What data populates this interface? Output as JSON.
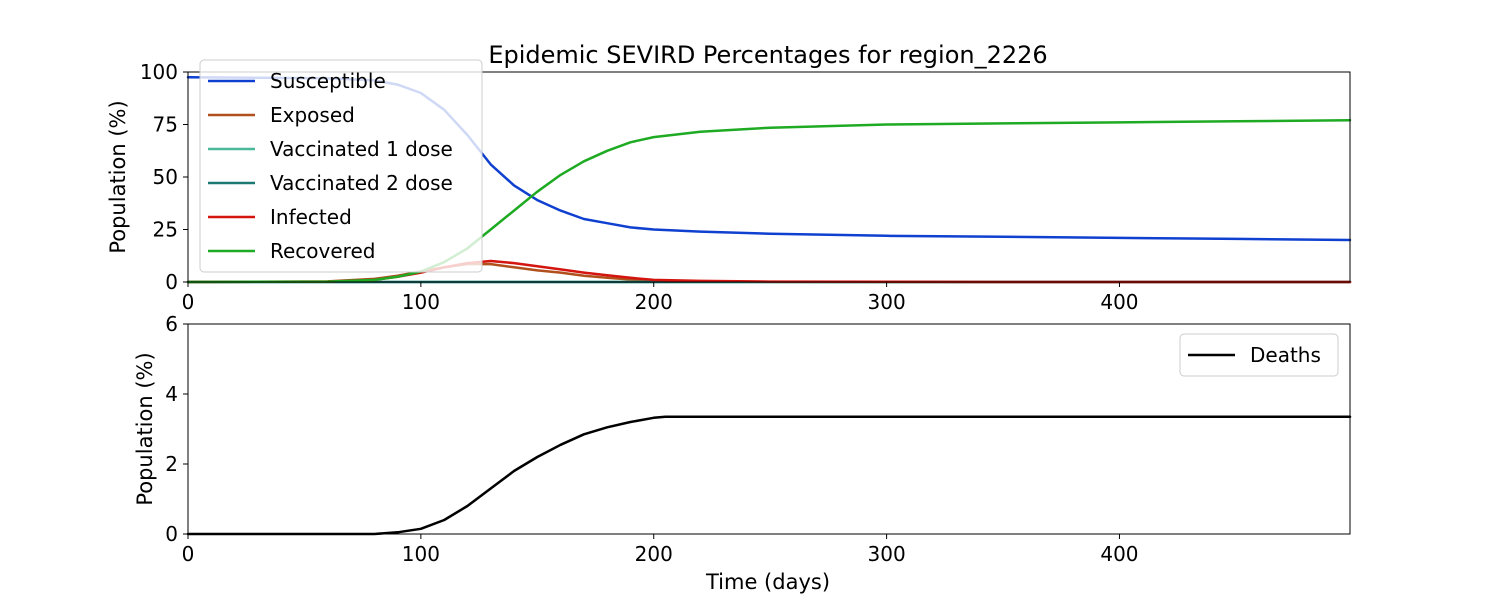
{
  "chart_data": [
    {
      "type": "line",
      "title": "Epidemic SEVIRD Percentages for region_2226",
      "xlabel": "",
      "ylabel": "Population (%)",
      "xlim": [
        0,
        499
      ],
      "ylim": [
        0,
        100
      ],
      "xticks": [
        0,
        100,
        200,
        300,
        400
      ],
      "yticks": [
        0,
        25,
        50,
        75,
        100
      ],
      "grid": false,
      "legend_position": "upper-left",
      "x": [
        0,
        60,
        80,
        90,
        100,
        110,
        120,
        130,
        140,
        150,
        160,
        170,
        180,
        190,
        200,
        220,
        250,
        300,
        350,
        400,
        450,
        499
      ],
      "series": [
        {
          "name": "Susceptible",
          "color": "#0f40d0",
          "values": [
            97.5,
            97,
            96,
            94,
            90,
            82,
            70,
            56,
            46,
            39,
            34,
            30,
            28,
            26,
            25,
            24,
            23,
            22,
            21.5,
            21,
            20.5,
            20
          ]
        },
        {
          "name": "Exposed",
          "color": "#b0501c",
          "values": [
            0,
            0.3,
            1.5,
            3,
            5,
            7,
            8.5,
            8.5,
            7,
            5.5,
            4.5,
            3,
            2,
            1.2,
            0.6,
            0.3,
            0.1,
            0,
            0,
            0,
            0,
            0
          ]
        },
        {
          "name": "Vaccinated 1 dose",
          "color": "#4cb89a",
          "values": [
            0,
            0,
            0,
            0,
            0,
            0,
            0,
            0,
            0,
            0,
            0,
            0,
            0,
            0,
            0,
            0,
            0,
            0,
            0,
            0,
            0,
            0
          ]
        },
        {
          "name": "Vaccinated 2 dose",
          "color": "#1d7a72",
          "values": [
            0,
            0,
            0,
            0,
            0,
            0,
            0,
            0,
            0,
            0,
            0,
            0,
            0,
            0,
            0,
            0,
            0,
            0,
            0,
            0,
            0,
            0
          ]
        },
        {
          "name": "Infected",
          "color": "#d4140e",
          "values": [
            0,
            0.2,
            1,
            2.5,
            4.5,
            7,
            9,
            10,
            9,
            7.5,
            6,
            4.5,
            3.2,
            2,
            1,
            0.5,
            0.2,
            0.1,
            0,
            0,
            0,
            0
          ]
        },
        {
          "name": "Recovered",
          "color": "#1eaa22",
          "values": [
            0,
            0.2,
            1,
            2.5,
            5,
            9.5,
            16,
            25,
            34,
            43,
            51,
            57.5,
            62.5,
            66.5,
            69,
            71.5,
            73.5,
            75,
            75.5,
            76,
            76.5,
            77
          ]
        }
      ]
    },
    {
      "type": "line",
      "title": "",
      "xlabel": "Time (days)",
      "ylabel": "Population (%)",
      "xlim": [
        0,
        499
      ],
      "ylim": [
        0,
        6
      ],
      "xticks": [
        0,
        100,
        200,
        300,
        400
      ],
      "yticks": [
        0,
        2,
        4,
        6
      ],
      "grid": false,
      "legend_position": "upper-right",
      "x": [
        0,
        80,
        90,
        100,
        110,
        120,
        130,
        140,
        150,
        160,
        170,
        180,
        190,
        200,
        205,
        250,
        300,
        400,
        499
      ],
      "series": [
        {
          "name": "Deaths",
          "color": "#000000",
          "values": [
            0,
            0,
            0.05,
            0.15,
            0.4,
            0.8,
            1.3,
            1.8,
            2.2,
            2.55,
            2.85,
            3.05,
            3.2,
            3.32,
            3.35,
            3.35,
            3.35,
            3.35,
            3.35
          ]
        }
      ]
    }
  ]
}
